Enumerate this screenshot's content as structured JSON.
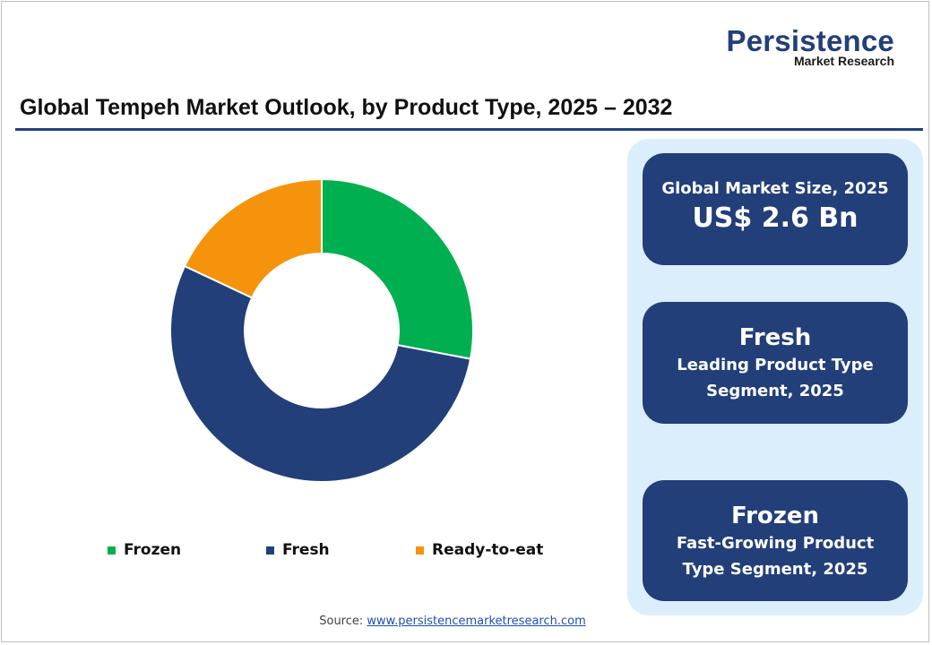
{
  "brand": {
    "name": "Persistence",
    "tagline": "Market Research"
  },
  "chart_data": {
    "type": "pie",
    "title": "Global Tempeh Market Outlook, by Product Type, 2025 – 2032",
    "categories": [
      "Frozen",
      "Fresh",
      "Ready-to-eat"
    ],
    "values": [
      28,
      54,
      18
    ],
    "colors": [
      "#00b050",
      "#223f7a",
      "#f5940c"
    ],
    "legend_position": "bottom",
    "donut": true
  },
  "cards": [
    {
      "label": "Global Market Size, 2025",
      "value": "US$ 2.6 Bn"
    },
    {
      "head": "Fresh",
      "line1": "Leading Product Type",
      "line2": "Segment, 2025"
    },
    {
      "head": "Frozen",
      "line1": "Fast-Growing Product",
      "line2": "Type Segment, 2025"
    }
  ],
  "source": {
    "label": "Source:",
    "link": "www.persistencemarketresearch.com"
  }
}
